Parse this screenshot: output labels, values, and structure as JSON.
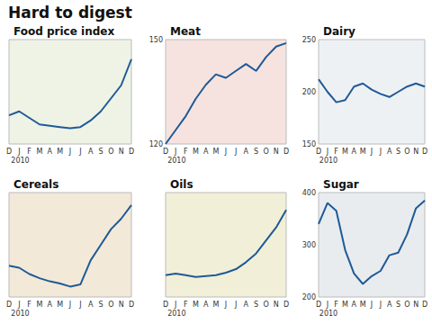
{
  "title": "Hard to digest",
  "chart_data": [
    {
      "type": "line",
      "title": "Food price index",
      "xlabel": "2010",
      "categories": [
        "D",
        "J",
        "F",
        "M",
        "A",
        "M",
        "J",
        "J",
        "A",
        "S",
        "O",
        "N",
        "D"
      ],
      "values": [
        172,
        175,
        170,
        165,
        164,
        163,
        162,
        163,
        168,
        175,
        185,
        195,
        215
      ],
      "color": "#1f5a96",
      "ylim": [
        150,
        230
      ],
      "tick_labels": "x"
    },
    {
      "type": "line",
      "title": "Meat",
      "xlabel": "2010",
      "categories": [
        "D",
        "J",
        "F",
        "M",
        "A",
        "M",
        "J",
        "J",
        "A",
        "S",
        "O",
        "N",
        "D"
      ],
      "values": [
        120,
        124,
        128,
        133,
        137,
        140,
        139,
        141,
        143,
        141,
        145,
        148,
        149
      ],
      "color": "#1f5a96",
      "ylim": [
        120,
        150
      ],
      "yticks": [
        120,
        150
      ]
    },
    {
      "type": "line",
      "title": "Dairy",
      "xlabel": "2010",
      "categories": [
        "D",
        "J",
        "F",
        "M",
        "A",
        "M",
        "J",
        "J",
        "A",
        "S",
        "O",
        "N",
        "D"
      ],
      "values": [
        212,
        200,
        190,
        192,
        205,
        208,
        202,
        198,
        195,
        200,
        205,
        208,
        205
      ],
      "color": "#1f5a96",
      "ylim": [
        150,
        250
      ],
      "yticks": [
        150,
        200,
        250
      ]
    },
    {
      "type": "line",
      "title": "Cereals",
      "xlabel": "2010",
      "categories": [
        "D",
        "J",
        "F",
        "M",
        "A",
        "M",
        "J",
        "J",
        "A",
        "S",
        "O",
        "N",
        "D"
      ],
      "values": [
        180,
        178,
        172,
        168,
        165,
        163,
        160,
        162,
        185,
        200,
        215,
        225,
        238
      ],
      "color": "#1f5a96",
      "ylim": [
        150,
        250
      ],
      "tick_labels": "x"
    },
    {
      "type": "line",
      "title": "Oils",
      "xlabel": "2010",
      "categories": [
        "D",
        "J",
        "F",
        "M",
        "A",
        "M",
        "J",
        "J",
        "A",
        "S",
        "O",
        "N",
        "D"
      ],
      "values": [
        175,
        177,
        175,
        173,
        174,
        175,
        178,
        182,
        190,
        200,
        215,
        230,
        250
      ],
      "color": "#1f5a96",
      "ylim": [
        150,
        270
      ],
      "tick_labels": "x"
    },
    {
      "type": "line",
      "title": "Sugar",
      "xlabel": "2010",
      "categories": [
        "D",
        "J",
        "F",
        "M",
        "A",
        "M",
        "J",
        "J",
        "A",
        "S",
        "O",
        "N",
        "D"
      ],
      "values": [
        340,
        380,
        365,
        290,
        245,
        225,
        240,
        250,
        280,
        285,
        320,
        370,
        385
      ],
      "color": "#1f5a96",
      "ylim": [
        200,
        400
      ],
      "yticks": [
        200,
        300,
        400
      ]
    }
  ]
}
